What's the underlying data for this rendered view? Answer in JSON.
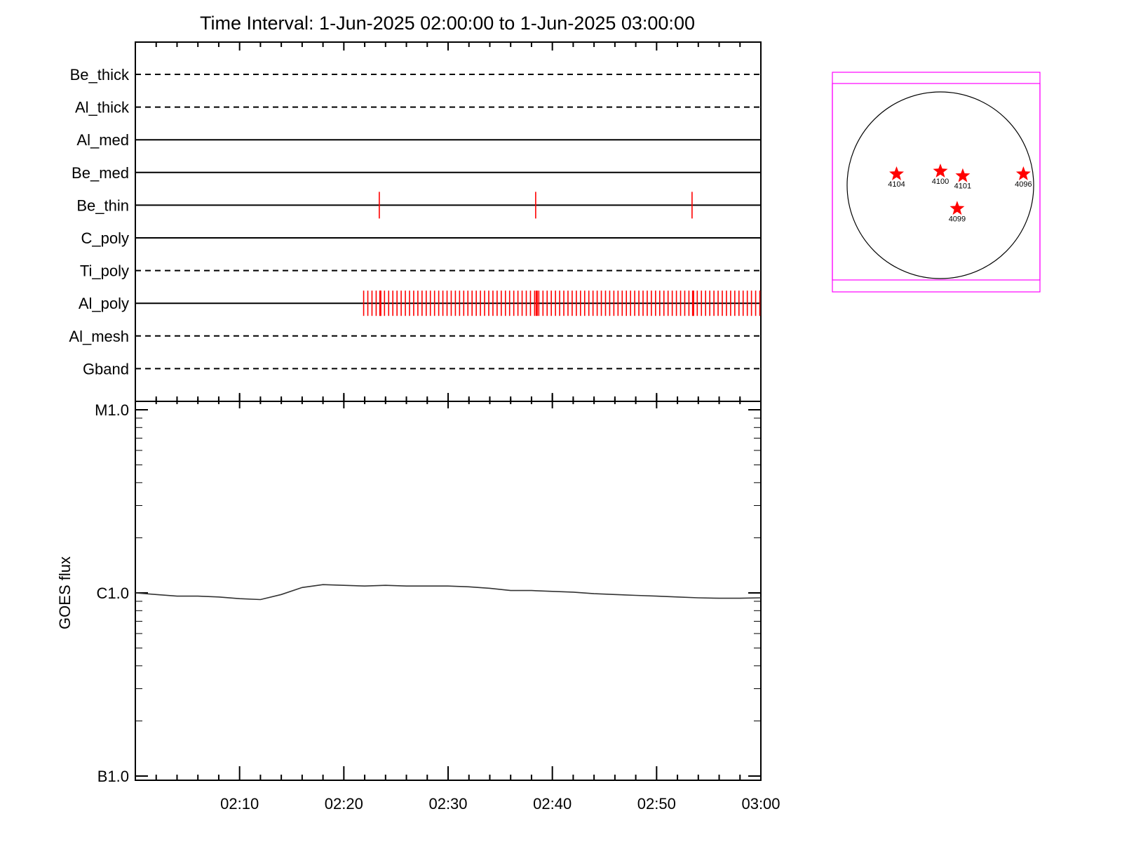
{
  "title": "Time Interval:  1-Jun-2025 02:00:00 to  1-Jun-2025 03:00:00",
  "colors": {
    "axis": "#000000",
    "events": "#ff0000",
    "curve": "#333333",
    "fov": "#ff00ff",
    "star": "#ff0000"
  },
  "chart_data": [
    {
      "type": "timeline",
      "x_range": [
        "02:00",
        "03:00"
      ],
      "rows": [
        {
          "name": "Be_thick",
          "style": "dashed",
          "events": []
        },
        {
          "name": "Al_thick",
          "style": "dashed",
          "events": []
        },
        {
          "name": "Al_med",
          "style": "solid",
          "events": []
        },
        {
          "name": "Be_med",
          "style": "solid",
          "events": []
        },
        {
          "name": "Be_thin",
          "style": "solid",
          "events": [
            23.4,
            38.4,
            53.4
          ]
        },
        {
          "name": "C_poly",
          "style": "solid",
          "events": []
        },
        {
          "name": "Ti_poly",
          "style": "dashed",
          "events": []
        },
        {
          "name": "Al_poly",
          "style": "solid",
          "events": "every 0.4 min from 02:21.9 to 03:00",
          "bold_events": [
            23.5,
            38.5,
            53.5
          ]
        },
        {
          "name": "Al_mesh",
          "style": "dashed",
          "events": []
        },
        {
          "name": "Gband",
          "style": "dashed",
          "events": []
        }
      ]
    },
    {
      "type": "line",
      "ylabel": "GOES flux",
      "yscale": "log",
      "ylim": [
        1e-07,
        1e-05
      ],
      "yticks": [
        {
          "value": 1e-05,
          "label": "M1.0"
        },
        {
          "value": 1e-06,
          "label": "C1.0"
        },
        {
          "value": 1e-07,
          "label": "B1.0"
        }
      ],
      "xticks": [
        "02:10",
        "02:20",
        "02:30",
        "02:40",
        "02:50",
        "03:00"
      ],
      "x_minutes": [
        0,
        2,
        4,
        6,
        8,
        10,
        12,
        14,
        16,
        18,
        20,
        22,
        24,
        26,
        28,
        30,
        32,
        34,
        36,
        38,
        40,
        42,
        44,
        46,
        48,
        50,
        52,
        54,
        56,
        58,
        60
      ],
      "flux": [
        1e-06,
        9.8e-07,
        9.6e-07,
        9.6e-07,
        9.5e-07,
        9.3e-07,
        9.2e-07,
        9.8e-07,
        1.07e-06,
        1.11e-06,
        1.1e-06,
        1.09e-06,
        1.1e-06,
        1.09e-06,
        1.09e-06,
        1.09e-06,
        1.08e-06,
        1.06e-06,
        1.03e-06,
        1.03e-06,
        1.02e-06,
        1.01e-06,
        9.9e-07,
        9.8e-07,
        9.7e-07,
        9.6e-07,
        9.5e-07,
        9.4e-07,
        9.35e-07,
        9.35e-07,
        9.4e-07
      ]
    },
    {
      "type": "scatter",
      "points": [
        {
          "label": "4104",
          "x": -0.47,
          "y": 0.12
        },
        {
          "label": "4100",
          "x": 0.0,
          "y": 0.15
        },
        {
          "label": "4101",
          "x": 0.24,
          "y": 0.1
        },
        {
          "label": "4096",
          "x": 0.89,
          "y": 0.12
        },
        {
          "label": "4099",
          "x": 0.18,
          "y": -0.25
        }
      ]
    }
  ]
}
